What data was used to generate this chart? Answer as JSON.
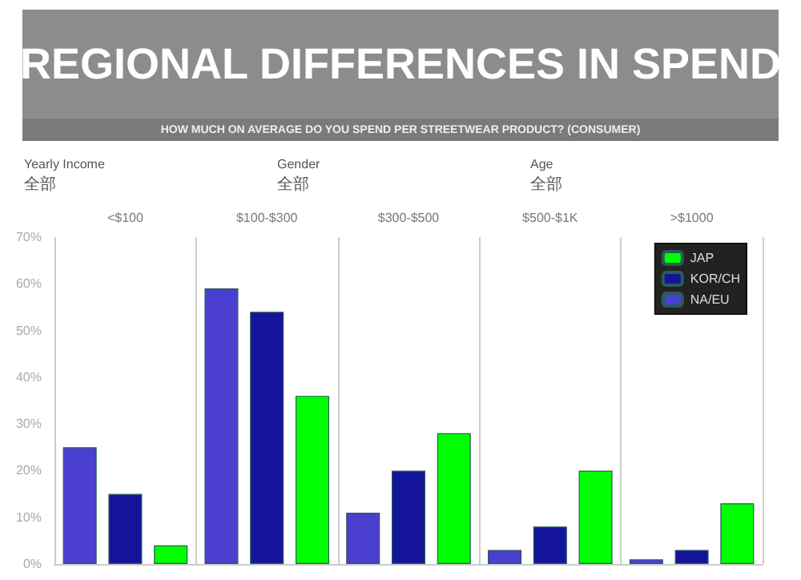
{
  "chart_data": {
    "type": "bar",
    "title": "REGIONAL DIFFERENCES IN SPEND",
    "subtitle": "HOW MUCH ON AVERAGE DO YOU SPEND PER STREETWEAR PRODUCT? (CONSUMER)",
    "annotations": [
      "Yearly Income",
      "全部",
      "Gender",
      "全部",
      "Age",
      "全部"
    ],
    "categories": [
      "<$100",
      "$100-$300",
      "$300-$500",
      "$500-$1K",
      ">$1000"
    ],
    "series": [
      {
        "name": "NA/EU",
        "color": "#4b3fd0",
        "values": [
          25,
          59,
          11,
          3,
          1
        ]
      },
      {
        "name": "KOR/CH",
        "color": "#14149a",
        "values": [
          15,
          54,
          20,
          8,
          3
        ]
      },
      {
        "name": "JAP",
        "color": "#00ff00",
        "values": [
          4,
          36,
          28,
          20,
          13
        ]
      }
    ],
    "ylim": [
      0,
      70
    ],
    "yticks": [
      {
        "value": 0,
        "label": "0%"
      },
      {
        "value": 10,
        "label": "10%"
      },
      {
        "value": 20,
        "label": "20%"
      },
      {
        "value": 30,
        "label": "30%"
      },
      {
        "value": 40,
        "label": "40%"
      },
      {
        "value": 50,
        "label": "50%"
      },
      {
        "value": 60,
        "label": "60%"
      },
      {
        "value": 70,
        "label": "70%"
      }
    ],
    "grid": "x",
    "legend": "top right"
  }
}
